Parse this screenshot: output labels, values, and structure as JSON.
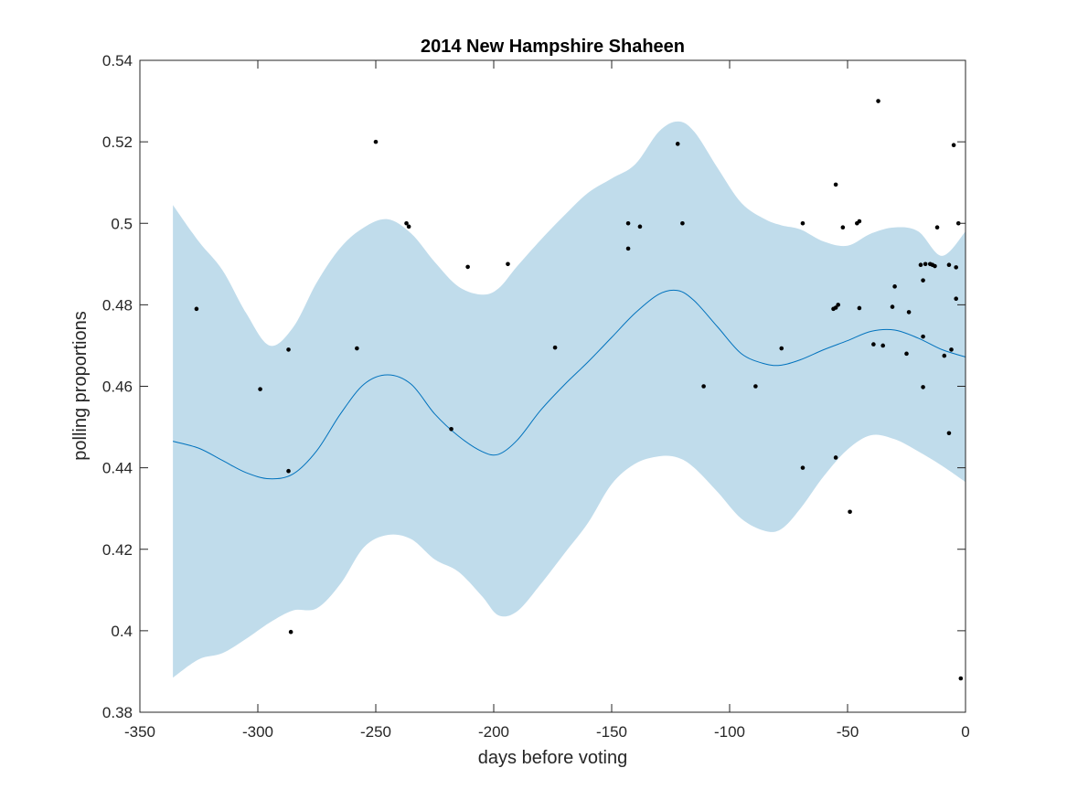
{
  "chart_data": {
    "type": "scatter",
    "title": "2014 New Hampshire Shaheen",
    "xlabel": "days before voting",
    "ylabel": "polling proportions",
    "xlim": [
      -350,
      0
    ],
    "ylim": [
      0.38,
      0.54
    ],
    "xticks": [
      -350,
      -300,
      -250,
      -200,
      -150,
      -100,
      -50,
      0
    ],
    "xtick_labels": [
      "-350",
      "-300",
      "-250",
      "-200",
      "-150",
      "-100",
      "-50",
      "0"
    ],
    "yticks": [
      0.38,
      0.4,
      0.42,
      0.44,
      0.46,
      0.48,
      0.5,
      0.52,
      0.54
    ],
    "ytick_labels": [
      "0.38",
      "0.4",
      "0.42",
      "0.44",
      "0.46",
      "0.48",
      "0.5",
      "0.52",
      "0.54"
    ],
    "grid": false,
    "colors": {
      "band": "#c0dceb",
      "line": "#0072bd",
      "points": "#000000",
      "axes": "#262626"
    },
    "trend": {
      "x": [
        -336,
        -325,
        -315,
        -305,
        -295,
        -285,
        -275,
        -265,
        -255,
        -245,
        -235,
        -225,
        -215,
        -205,
        -198,
        -190,
        -180,
        -170,
        -160,
        -150,
        -140,
        -130,
        -122,
        -115,
        -105,
        -95,
        -85,
        -78,
        -70,
        -60,
        -50,
        -40,
        -30,
        -20,
        -10,
        0
      ],
      "y": [
        0.4465,
        0.4448,
        0.4418,
        0.4388,
        0.4373,
        0.4385,
        0.4442,
        0.4532,
        0.4605,
        0.4628,
        0.4605,
        0.4532,
        0.4478,
        0.444,
        0.4433,
        0.4468,
        0.4542,
        0.4604,
        0.466,
        0.472,
        0.478,
        0.4826,
        0.4835,
        0.481,
        0.4745,
        0.468,
        0.4655,
        0.4652,
        0.4665,
        0.469,
        0.4712,
        0.4735,
        0.4738,
        0.4718,
        0.469,
        0.4672
      ]
    },
    "band_upper": [
      0.5045,
      0.4955,
      0.4885,
      0.478,
      0.47,
      0.4745,
      0.4855,
      0.494,
      0.499,
      0.501,
      0.4975,
      0.4905,
      0.4845,
      0.4825,
      0.484,
      0.4895,
      0.496,
      0.502,
      0.5075,
      0.511,
      0.5145,
      0.5225,
      0.525,
      0.5225,
      0.5135,
      0.505,
      0.501,
      0.4995,
      0.4985,
      0.4955,
      0.4945,
      0.4975,
      0.499,
      0.498,
      0.492,
      0.498
    ],
    "band_lower": [
      0.3885,
      0.393,
      0.3945,
      0.398,
      0.402,
      0.405,
      0.4055,
      0.4115,
      0.4205,
      0.4235,
      0.4225,
      0.4175,
      0.4145,
      0.4085,
      0.4038,
      0.4048,
      0.4115,
      0.419,
      0.4265,
      0.436,
      0.441,
      0.4428,
      0.4425,
      0.44,
      0.434,
      0.4275,
      0.4245,
      0.425,
      0.43,
      0.438,
      0.4445,
      0.448,
      0.447,
      0.444,
      0.4405,
      0.4365
    ],
    "points": {
      "x": [
        -326,
        -299,
        -287,
        -287,
        -286,
        -258,
        -250,
        -237,
        -236,
        -218,
        -211,
        -194,
        -174,
        -143,
        -143,
        -138,
        -122,
        -120,
        -111,
        -89,
        -78,
        -69,
        -69,
        -56,
        -55,
        -55,
        -55,
        -54,
        -52,
        -49,
        -46,
        -45,
        -45,
        -37,
        -39,
        -35,
        -31,
        -30,
        -25,
        -24,
        -19,
        -18,
        -18,
        -18,
        -17,
        -15,
        -14,
        -13,
        -12,
        -9,
        -7,
        -7,
        -6,
        -5,
        -4,
        -4,
        -3,
        -2
      ],
      "y": [
        0.479,
        0.4593,
        0.469,
        0.4392,
        0.3997,
        0.4693,
        0.52,
        0.5,
        0.4992,
        0.4495,
        0.4893,
        0.49,
        0.4695,
        0.5,
        0.4938,
        0.4992,
        0.5195,
        0.5,
        0.46,
        0.46,
        0.4693,
        0.5,
        0.44,
        0.479,
        0.4425,
        0.5095,
        0.4793,
        0.48,
        0.499,
        0.4292,
        0.5,
        0.5005,
        0.4792,
        0.53,
        0.4703,
        0.47,
        0.4795,
        0.4845,
        0.468,
        0.4782,
        0.4898,
        0.4722,
        0.4598,
        0.486,
        0.49,
        0.49,
        0.4898,
        0.4895,
        0.499,
        0.4675,
        0.4485,
        0.4898,
        0.469,
        0.5192,
        0.4892,
        0.4815,
        0.5,
        0.3883
      ]
    }
  }
}
